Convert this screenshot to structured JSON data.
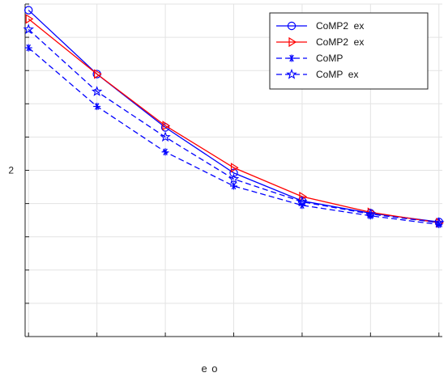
{
  "chart_data": {
    "type": "line",
    "title": "",
    "xlabel": "e o",
    "ylabel": "",
    "x": [
      1,
      2,
      3,
      4,
      5,
      6,
      7
    ],
    "xlim": [
      0.95,
      7.05
    ],
    "ylim": [
      1.81,
      2.19
    ],
    "yticks": [
      2.0
    ],
    "ytick_labels": [
      "2"
    ],
    "grid": true,
    "legend_position": "top-right",
    "series": [
      {
        "name": "CoMP2  ex",
        "color": "#0000ff",
        "dash": "solid",
        "marker": "circle",
        "values": [
          2.183,
          2.11,
          2.049,
          1.997,
          1.965,
          1.951,
          1.941
        ]
      },
      {
        "name": "CoMP2  ex",
        "color": "#ff0000",
        "dash": "solid",
        "marker": "triangle-right",
        "values": [
          2.173,
          2.11,
          2.051,
          2.003,
          1.97,
          1.952,
          1.94
        ]
      },
      {
        "name": "CoMP",
        "color": "#0000ff",
        "dash": "dashed",
        "marker": "asterisk",
        "values": [
          2.14,
          2.073,
          2.021,
          1.982,
          1.96,
          1.948,
          1.938
        ]
      },
      {
        "name": "CoMP  ex",
        "color": "#0000ff",
        "dash": "dashed",
        "marker": "star",
        "values": [
          2.161,
          2.09,
          2.038,
          1.99,
          1.964,
          1.95,
          1.94
        ]
      }
    ]
  }
}
